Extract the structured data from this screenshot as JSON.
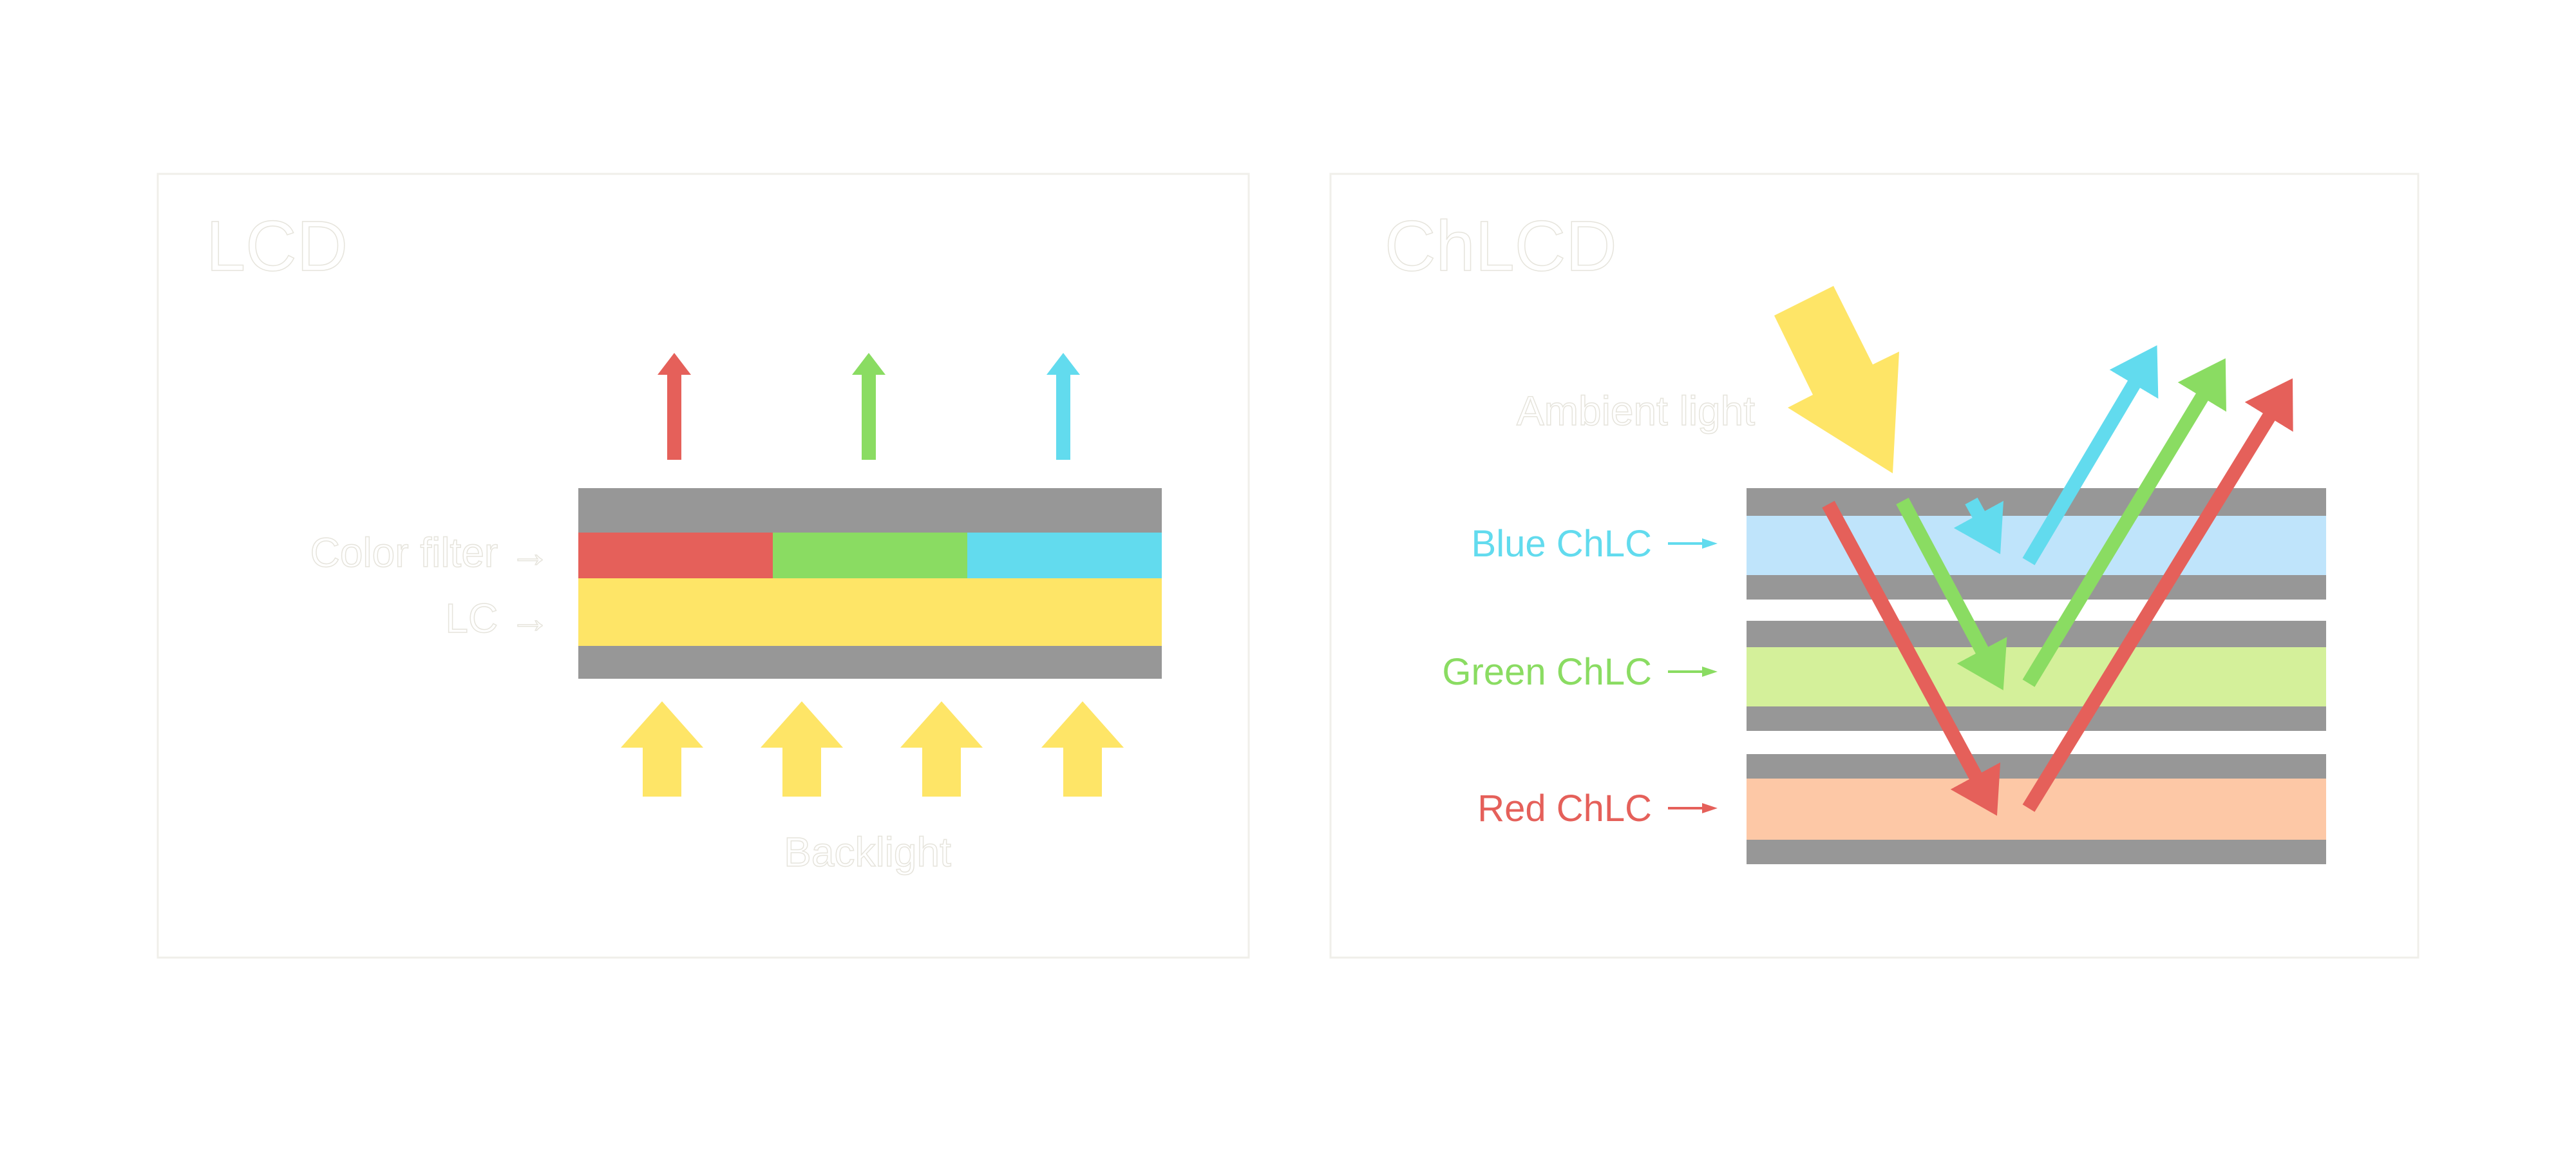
{
  "colors": {
    "red": "#e5605a",
    "green": "#8adc62",
    "blue": "#62dbee",
    "yellow": "#fee567",
    "gray": "#979797",
    "blue_layer": "#bfe4fb",
    "green_layer": "#d4f09a",
    "red_layer": "#fdc8a6"
  },
  "lcd": {
    "title": "LCD",
    "color_filter_label": "Color filter →",
    "lc_label": "LC →",
    "backlight_label": "Backlight"
  },
  "chlcd": {
    "title": "ChLCD",
    "ambient_label": "Ambient light",
    "blue_label": "Blue ChLC",
    "green_label": "Green ChLC",
    "red_label": "Red ChLC"
  }
}
